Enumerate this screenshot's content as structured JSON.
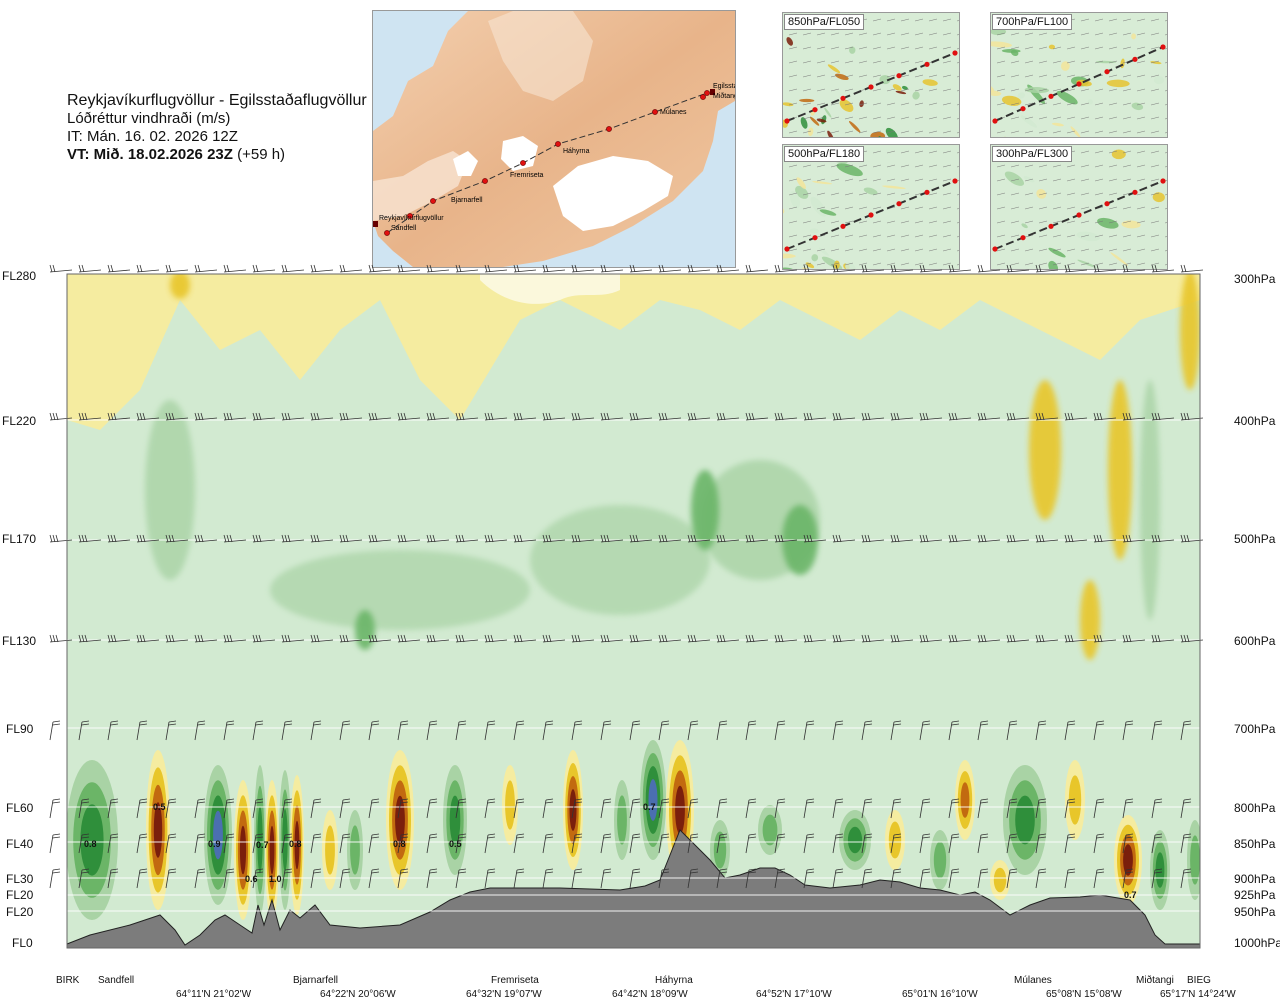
{
  "header": {
    "route": "Reykjavíkurflugvöllur - Egilsstaðaflugvöllur",
    "parameter": "Lóðréttur vindhraði (m/s)",
    "init_time": "IT: Mán. 16. 02. 2026 12Z",
    "valid_prefix": "VT: Mið. 18.02.2026 23Z",
    "valid_offset": "(+59 h)"
  },
  "overview_map": {
    "waypoints": [
      "Reykjavíkurflugvöllur",
      "Sandfell",
      "Bjarnarfell",
      "Fremriseta",
      "Háhyrna",
      "Múlanes",
      "Miðtangi",
      "Egilsstaðir"
    ]
  },
  "level_maps": [
    {
      "label": "850hPa/FL050"
    },
    {
      "label": "700hPa/FL100"
    },
    {
      "label": "500hPa/FL180"
    },
    {
      "label": "300hPa/FL300"
    }
  ],
  "levels_left": [
    "FL280",
    "FL220",
    "FL170",
    "FL130",
    "FL90",
    "FL60",
    "FL40",
    "FL30",
    "FL20",
    "FL20",
    "FL0"
  ],
  "levels_right": [
    "300hPa",
    "400hPa",
    "500hPa",
    "600hPa",
    "700hPa",
    "800hPa",
    "850hPa",
    "900hPa",
    "925hPa",
    "950hPa",
    "1000hPa"
  ],
  "bottom_points": [
    "BIRK",
    "Sandfell",
    "Bjarnarfell",
    "Fremriseta",
    "Háhyrna",
    "Múlanes",
    "Miðtangi",
    "BIEG"
  ],
  "bottom_coords": [
    "64°11'N 21°02'W",
    "64°22'N 20°06'W",
    "64°32'N 19°07'W",
    "64°42'N 18°09'W",
    "64°52'N 17°10'W",
    "65°01'N 16°10'W",
    "65°08'N 15°08'W",
    "65°17'N 14°24'W"
  ],
  "value_labels": [
    "0.8",
    "0.5",
    "0.9",
    "0.7",
    "0.8",
    "0.6",
    "1.0",
    "0.8",
    "0.5",
    "0.7",
    "0.7"
  ],
  "colors": {
    "strong_sink": "#7a1f0c",
    "sink": "#c26a10",
    "weak_sink": "#e8c62a",
    "very_weak_sink": "#f5eca0",
    "neutral": "#fbf8dc",
    "weak_rise": "#d2ead1",
    "rise": "#a9d3a5",
    "moderate_rise": "#6bb567",
    "strong_rise": "#2f8f3b",
    "very_strong_rise": "#4b6fb0",
    "terrain": "#7c7c7c",
    "route_point": "#e01010"
  }
}
